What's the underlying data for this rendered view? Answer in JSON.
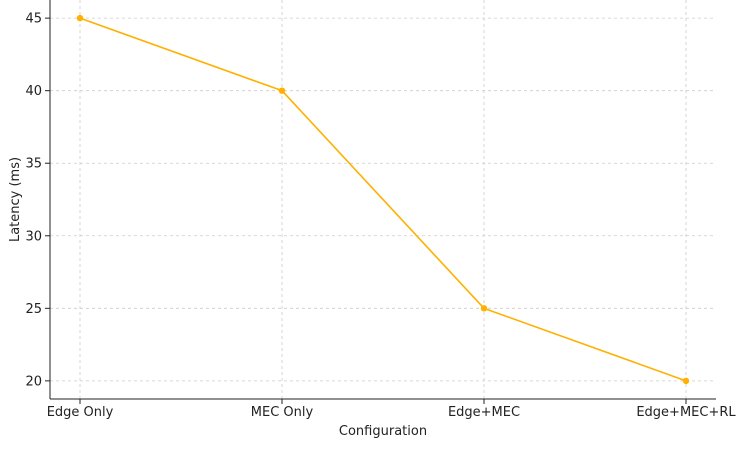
{
  "chart_data": {
    "type": "line",
    "categories": [
      "Edge Only",
      "MEC Only",
      "Edge+MEC",
      "Edge+MEC+RL"
    ],
    "series": [
      {
        "values": [
          45,
          40,
          25,
          20
        ],
        "color": "#FFB000",
        "marker": "circle"
      }
    ],
    "xlabel": "Configuration",
    "ylabel": "Latency (ms)",
    "yticks": [
      20,
      25,
      30,
      35,
      40,
      45
    ],
    "ylim": [
      18.75,
      46.25
    ],
    "grid": true
  }
}
